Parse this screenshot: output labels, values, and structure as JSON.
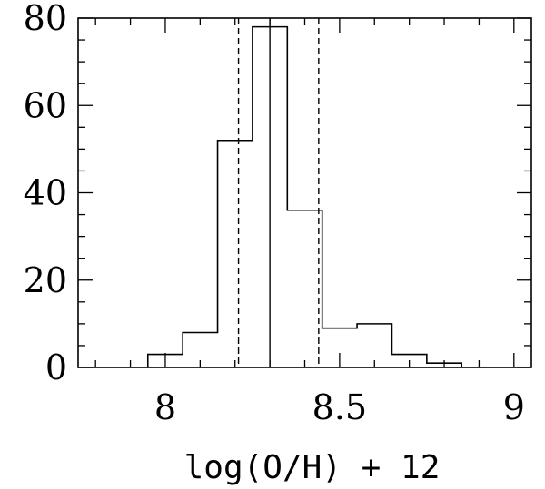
{
  "chart_data": {
    "type": "histogram",
    "title": "",
    "xlabel": "log(O/H) + 12",
    "ylabel": "",
    "xlim": [
      7.75,
      9.05
    ],
    "ylim": [
      0,
      80
    ],
    "xticks": [
      8,
      8.5,
      9
    ],
    "xtick_labels": [
      "8",
      "8.5",
      "9"
    ],
    "yticks": [
      0,
      20,
      40,
      60,
      80
    ],
    "ytick_labels": [
      "0",
      "20",
      "40",
      "60",
      "80"
    ],
    "bin_edges": [
      7.95,
      8.05,
      8.15,
      8.25,
      8.35,
      8.45,
      8.55,
      8.65,
      8.75,
      8.85
    ],
    "counts": [
      3,
      8,
      52,
      78,
      36,
      9,
      10,
      3,
      1
    ],
    "median": 8.3,
    "bounds": [
      8.21,
      8.44
    ],
    "grid": false
  }
}
